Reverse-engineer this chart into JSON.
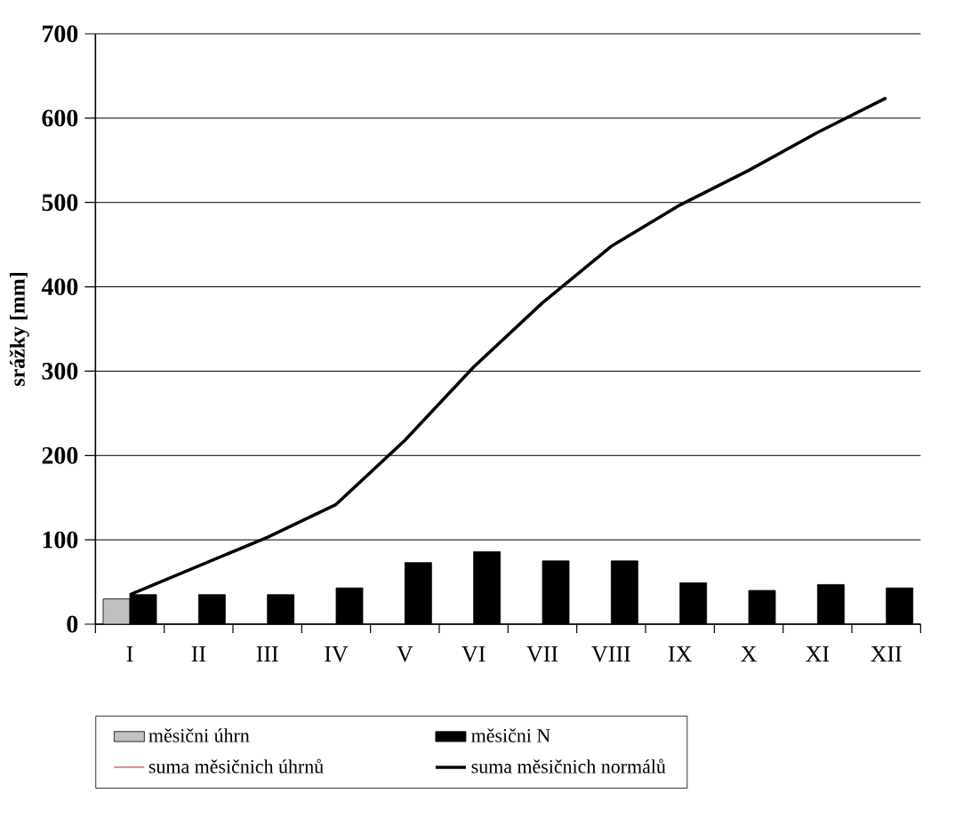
{
  "chart_data": {
    "type": "bar",
    "ylabel": "srážky [mm]",
    "categories": [
      "I",
      "II",
      "III",
      "IV",
      "V",
      "VI",
      "VII",
      "VIII",
      "IX",
      "X",
      "XI",
      "XII"
    ],
    "ylim": [
      0,
      700
    ],
    "yticks": [
      0,
      100,
      200,
      300,
      400,
      500,
      600,
      700
    ],
    "grid": "y",
    "legend": "bottom",
    "series": [
      {
        "name": "měsični úhrn",
        "color": "#c0c0c0",
        "values": [
          30,
          null,
          null,
          null,
          null,
          null,
          null,
          null,
          null,
          null,
          null,
          null
        ]
      },
      {
        "name": "měsični N",
        "color": "#000000",
        "values": [
          35,
          35,
          35,
          43,
          73,
          86,
          75,
          75,
          49,
          40,
          47,
          43
        ]
      },
      {
        "name": "suma měsičnich úhrnů",
        "type": "line",
        "color": "#c0504d",
        "values": [
          null,
          null,
          null,
          null,
          null,
          null,
          null,
          null,
          null,
          null,
          null,
          null
        ]
      },
      {
        "name": "suma měsičnich normálů",
        "type": "line",
        "color": "#000000",
        "values": [
          35,
          69,
          103,
          142,
          218,
          305,
          381,
          448,
          497,
          538,
          583,
          624
        ]
      }
    ]
  }
}
